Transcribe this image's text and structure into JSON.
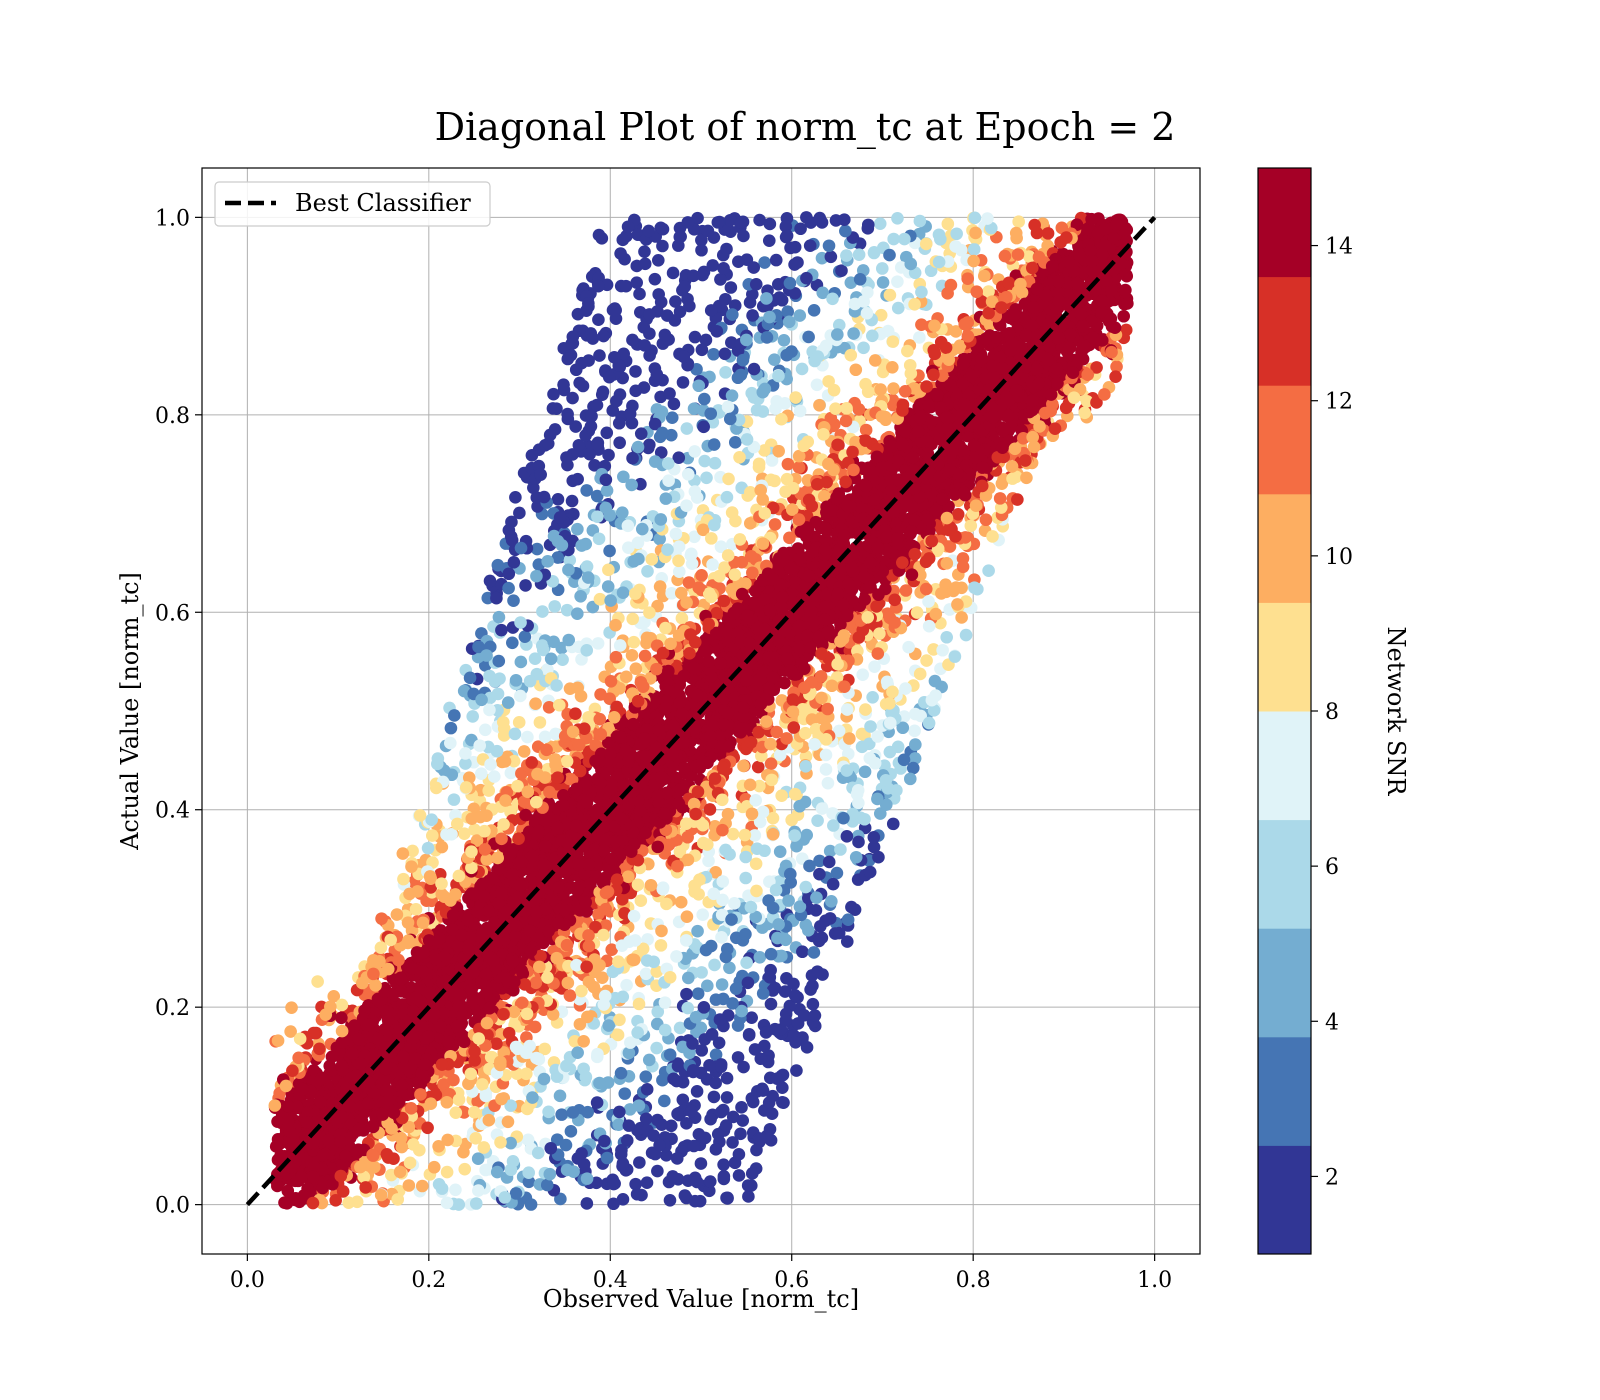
{
  "chart_data": {
    "type": "scatter",
    "title": "Diagonal Plot of norm_tc at Epoch = 2",
    "xlabel": "Observed Value [norm_tc]",
    "ylabel": "Actual Value [norm_tc]",
    "xlim": [
      -0.05,
      1.05
    ],
    "ylim": [
      -0.05,
      1.05
    ],
    "xticks": [
      "0.0",
      "0.2",
      "0.4",
      "0.6",
      "0.8",
      "1.0"
    ],
    "yticks": [
      "0.0",
      "0.2",
      "0.4",
      "0.6",
      "0.8",
      "1.0"
    ],
    "grid": true,
    "legend": {
      "placement": "upper-left",
      "entries": [
        "Best Classifier"
      ]
    },
    "reference_line": {
      "name": "Best Classifier",
      "x": [
        0,
        1
      ],
      "y": [
        0,
        1
      ],
      "style": "dashed",
      "color": "#000000"
    },
    "colorbar": {
      "label": "Network SNR",
      "range": [
        1,
        15
      ],
      "ticks": [
        "2",
        "4",
        "6",
        "8",
        "10",
        "12",
        "14"
      ],
      "colors": [
        "#313695",
        "#4575b4",
        "#74add1",
        "#abd9e9",
        "#e0f3f8",
        "#fee090",
        "#fdae61",
        "#f46d43",
        "#d73027",
        "#a50026"
      ]
    },
    "scatter_summary": {
      "x_range": [
        0.03,
        0.97
      ],
      "y_range": [
        0.0,
        1.0
      ],
      "high_snr_band": "points near the diagonal have Network SNR around 14-15",
      "low_snr_regions": "points far from the diagonal (upper-left and lower-right) have Network SNR 1-8"
    }
  }
}
